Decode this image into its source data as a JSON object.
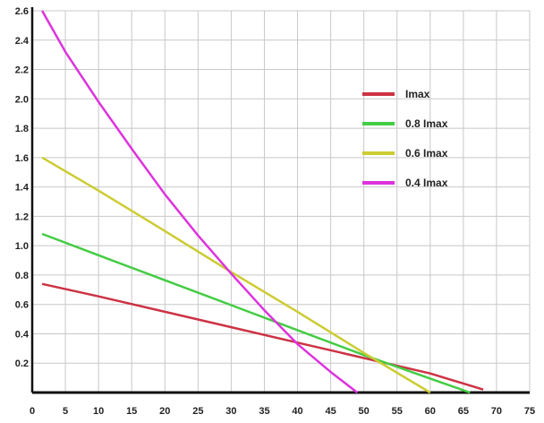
{
  "chart_data": {
    "type": "line",
    "title": "",
    "xlabel": "",
    "ylabel": "",
    "xlim": [
      0,
      75
    ],
    "ylim": [
      0,
      2.6
    ],
    "x_ticks": [
      0,
      5,
      10,
      15,
      20,
      25,
      30,
      35,
      40,
      45,
      50,
      55,
      60,
      65,
      70,
      75
    ],
    "y_ticks": [
      0.2,
      0.4,
      0.6,
      0.8,
      1.0,
      1.2,
      1.4,
      1.6,
      1.8,
      2.0,
      2.2,
      2.4,
      2.6
    ],
    "x_tick_labels": [
      "0",
      "5",
      "10",
      "15",
      "20",
      "25",
      "30",
      "35",
      "40",
      "45",
      "50",
      "55",
      "60",
      "65",
      "70",
      "75"
    ],
    "y_tick_labels": [
      "0.2",
      "0.4",
      "0.6",
      "0.8",
      "1.0",
      "1.2",
      "1.4",
      "1.6",
      "1.8",
      "2.0",
      "2.2",
      "2.4",
      "2.6"
    ],
    "grid": true,
    "legend_position": "right",
    "series": [
      {
        "name": "Imax",
        "color": "#cc3344",
        "x": [
          1.5,
          10,
          20,
          30,
          40,
          50,
          60,
          68
        ],
        "y": [
          0.74,
          0.655,
          0.55,
          0.445,
          0.34,
          0.235,
          0.13,
          0.02
        ]
      },
      {
        "name": "0.8 Imax",
        "color": "#44cc44",
        "x": [
          1.5,
          10,
          20,
          30,
          40,
          50,
          60,
          66
        ],
        "y": [
          1.08,
          0.935,
          0.765,
          0.595,
          0.425,
          0.255,
          0.095,
          0.0
        ]
      },
      {
        "name": "0.6 Imax",
        "color": "#cccc33",
        "x": [
          1.5,
          10,
          20,
          30,
          40,
          50,
          60
        ],
        "y": [
          1.6,
          1.375,
          1.1,
          0.82,
          0.55,
          0.27,
          0.0
        ]
      },
      {
        "name": "0.4 Imax",
        "color": "#dd33dd",
        "x": [
          1.5,
          5,
          10,
          15,
          20,
          25,
          30,
          35,
          40,
          45,
          49
        ],
        "y": [
          2.6,
          2.32,
          1.98,
          1.66,
          1.35,
          1.07,
          0.81,
          0.56,
          0.33,
          0.14,
          0.0
        ]
      }
    ]
  }
}
